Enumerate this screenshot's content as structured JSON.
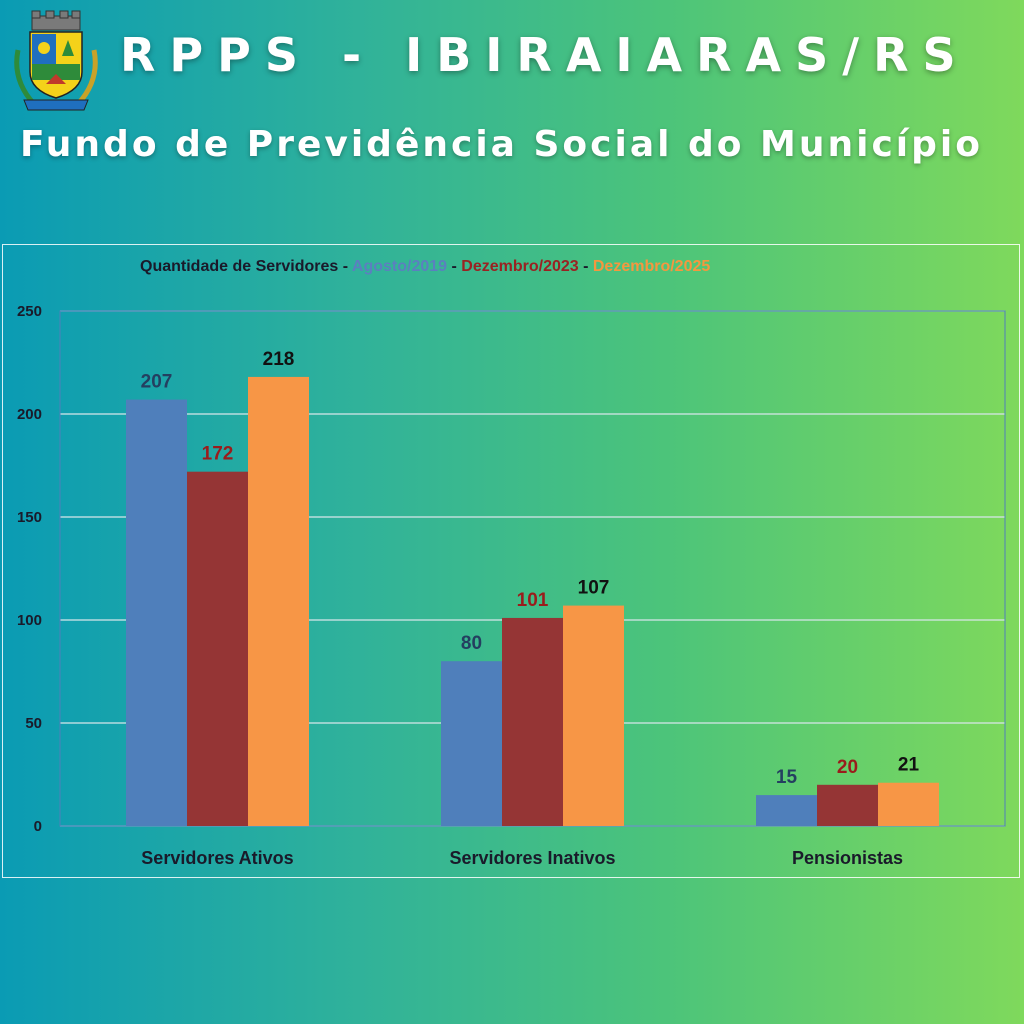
{
  "header": {
    "title": "RPPS - IBIRAIARAS/RS",
    "subtitle": "Fundo de Previdência Social do Município"
  },
  "chart_title": {
    "prefix": "Quantidade de Servidores",
    "sep1": " -  ",
    "sep2": " - ",
    "sep3": " - "
  },
  "chart_data": {
    "type": "bar",
    "title": "Quantidade de Servidores - Agosto/2019 - Dezembro/2023 - Dezembro/2025",
    "categories": [
      "Servidores Ativos",
      "Servidores Inativos",
      "Pensionistas"
    ],
    "series": [
      {
        "name": "Agosto/2019",
        "values": [
          207,
          80,
          15
        ],
        "color": "#4f7fbb",
        "label_color": "#243f60"
      },
      {
        "name": "Dezembro/2023",
        "values": [
          172,
          101,
          20
        ],
        "color": "#953535",
        "label_color": "#9a1c1c"
      },
      {
        "name": "Dezembro/2025",
        "values": [
          218,
          107,
          21
        ],
        "color": "#f79646",
        "label_color": "#111111"
      }
    ],
    "yticks": [
      0,
      50,
      100,
      150,
      200,
      250
    ],
    "ylim": [
      0,
      250
    ],
    "grid": true,
    "legend": "top (in title)"
  },
  "colors": {
    "bg_left": "#0a9bb4",
    "bg_right": "#7fd95c",
    "gridline": "#d8e6ea",
    "plot_border": "#4f7fbb"
  },
  "icons": {
    "crest": "municipal-coat-of-arms-icon"
  }
}
